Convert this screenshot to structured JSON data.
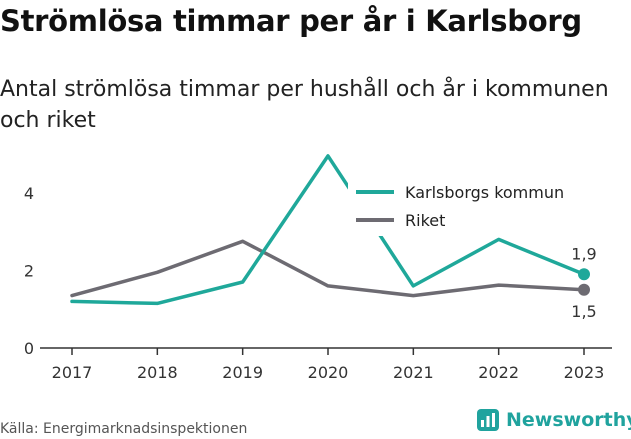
{
  "title": "Strömlösa timmar per år i Karlsborg",
  "subtitle": "Antal strömlösa timmar per hushåll och år i kommunen och riket",
  "source": "Källa: Energimarknadsinspektionen",
  "brand": {
    "name": "Newsworthy",
    "icon": "newsworthy-logo-icon",
    "color": "#20a39e"
  },
  "chart_data": {
    "type": "line",
    "x": [
      "2017",
      "2018",
      "2019",
      "2020",
      "2021",
      "2022",
      "2023"
    ],
    "series": [
      {
        "name": "Karlsborgs kommun",
        "color": "#1fa89a",
        "values": [
          1.2,
          1.15,
          1.7,
          4.95,
          1.6,
          2.8,
          1.9
        ],
        "end_label": "1,9"
      },
      {
        "name": "Riket",
        "color": "#6d6b72",
        "values": [
          1.35,
          1.95,
          2.75,
          1.6,
          1.35,
          1.62,
          1.5
        ],
        "end_label": "1,5"
      }
    ],
    "y_ticks": [
      0,
      2,
      4
    ],
    "y_tick_labels": [
      "0",
      "2",
      "4"
    ],
    "ylim": [
      0,
      5
    ],
    "xlabel": "",
    "ylabel": "",
    "legend": "top-right",
    "grid": false
  }
}
